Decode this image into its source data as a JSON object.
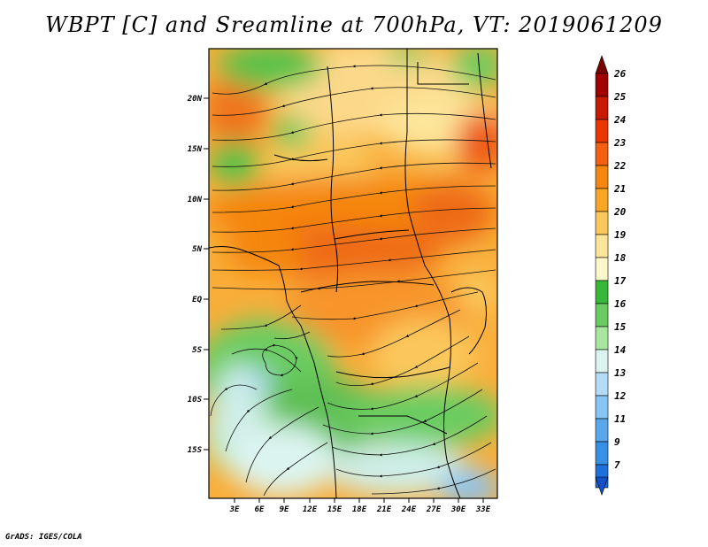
{
  "title": "WBPT [C] and Sreamline at 700hPa, VT: 2019061209",
  "footer": "GrADS: IGES/COLA",
  "map": {
    "lat_labels": [
      "20N",
      "15N",
      "10N",
      "5N",
      "EQ",
      "5S",
      "10S",
      "15S"
    ],
    "lon_labels": [
      "3E",
      "6E",
      "9E",
      "12E",
      "15E",
      "18E",
      "21E",
      "24E",
      "27E",
      "30E",
      "33E"
    ]
  },
  "colorbar": {
    "labels": [
      "26",
      "25",
      "24",
      "23",
      "22",
      "21",
      "20",
      "19",
      "18",
      "17",
      "16",
      "15",
      "14",
      "13",
      "12",
      "11",
      "9",
      "7"
    ],
    "colors": [
      "#a00000",
      "#c81a00",
      "#e83800",
      "#f26010",
      "#f5860f",
      "#f8a624",
      "#fbc75c",
      "#fde59a",
      "#fcf7c8",
      "#38b838",
      "#6acc60",
      "#a8e6a0",
      "#dcf4f0",
      "#b4dcf8",
      "#88c4f4",
      "#5aa8ec",
      "#3890e4",
      "#1e70dc"
    ],
    "tip_top": "#780000",
    "tip_bottom": "#1450c8"
  }
}
